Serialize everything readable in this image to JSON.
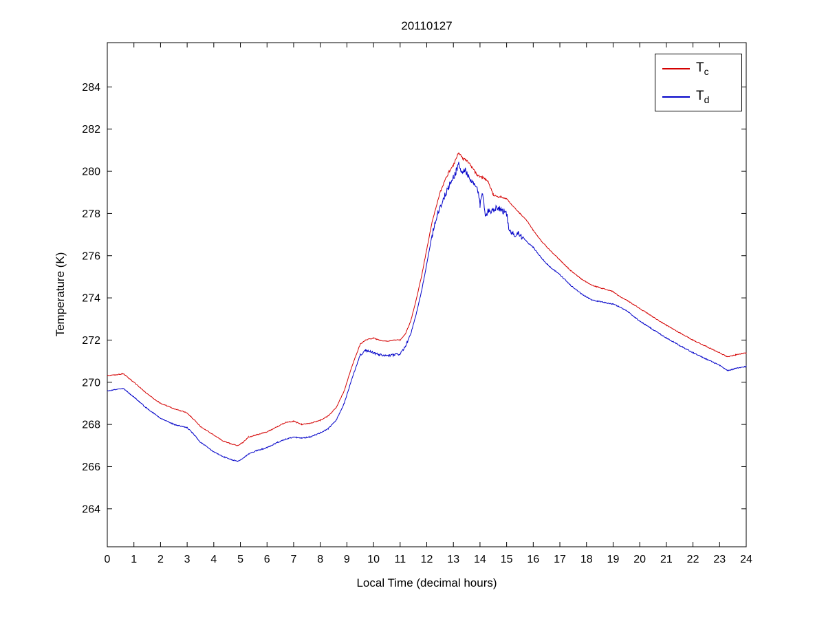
{
  "chart_data": {
    "type": "line",
    "title": "20110127",
    "xlabel": "Local Time (decimal hours)",
    "ylabel": "Temperature (K)",
    "xlim": [
      0,
      24
    ],
    "ylim": [
      262.2,
      286.1
    ],
    "xticks": [
      0,
      1,
      2,
      3,
      4,
      5,
      6,
      7,
      8,
      9,
      10,
      11,
      12,
      13,
      14,
      15,
      16,
      17,
      18,
      19,
      20,
      21,
      22,
      23,
      24
    ],
    "yticks": [
      264,
      266,
      268,
      270,
      272,
      274,
      276,
      278,
      280,
      282,
      284
    ],
    "grid": false,
    "legend_position": "top-right",
    "series": [
      {
        "name": "Tc",
        "label_main": "T",
        "label_sub": "c",
        "color": "#d40000",
        "x": [
          0,
          0.3,
          0.6,
          1,
          1.5,
          2,
          2.5,
          3,
          3.2,
          3.5,
          4,
          4.3,
          4.6,
          4.9,
          5.1,
          5.3,
          5.6,
          6,
          6.4,
          6.7,
          7,
          7.3,
          7.6,
          8,
          8.3,
          8.6,
          8.9,
          9.2,
          9.5,
          9.7,
          10,
          10.2,
          10.5,
          10.8,
          11,
          11.2,
          11.4,
          11.6,
          11.8,
          12,
          12.2,
          12.5,
          12.8,
          13,
          13.2,
          13.35,
          13.5,
          13.7,
          13.9,
          14.1,
          14.3,
          14.5,
          14.7,
          15,
          15.2,
          15.5,
          15.8,
          16,
          16.3,
          16.6,
          17,
          17.4,
          17.8,
          18.2,
          18.6,
          19,
          19.2,
          19.5,
          20,
          20.5,
          21,
          21.5,
          22,
          22.5,
          23,
          23.3,
          23.6,
          24
        ],
        "y": [
          270.3,
          270.35,
          270.4,
          270.0,
          269.45,
          269.0,
          268.75,
          268.55,
          268.3,
          267.9,
          267.5,
          267.25,
          267.1,
          267.0,
          267.15,
          267.4,
          267.5,
          267.65,
          267.9,
          268.1,
          268.15,
          268.0,
          268.05,
          268.2,
          268.4,
          268.8,
          269.6,
          270.8,
          271.8,
          272.0,
          272.1,
          272.0,
          271.95,
          272.0,
          272.0,
          272.3,
          272.9,
          273.9,
          275.0,
          276.3,
          277.6,
          279.0,
          279.9,
          280.3,
          280.9,
          280.6,
          280.5,
          280.2,
          279.8,
          279.7,
          279.5,
          278.9,
          278.8,
          278.7,
          278.4,
          278.0,
          277.6,
          277.2,
          276.7,
          276.3,
          275.8,
          275.3,
          274.9,
          274.6,
          274.45,
          274.3,
          274.1,
          273.9,
          273.5,
          273.1,
          272.7,
          272.35,
          272.0,
          271.7,
          271.4,
          271.2,
          271.3,
          271.4
        ],
        "noise": [
          {
            "from": 0,
            "to": 24,
            "amp": 0.02
          },
          {
            "from": 12.5,
            "to": 14.8,
            "amp": 0.06
          }
        ]
      },
      {
        "name": "Td",
        "label_main": "T",
        "label_sub": "d",
        "color": "#0000c8",
        "x": [
          0,
          0.3,
          0.6,
          1,
          1.5,
          2,
          2.5,
          3,
          3.2,
          3.5,
          4,
          4.3,
          4.6,
          4.9,
          5.1,
          5.3,
          5.6,
          6,
          6.4,
          6.7,
          7,
          7.3,
          7.6,
          8,
          8.3,
          8.6,
          8.9,
          9.2,
          9.5,
          9.7,
          10,
          10.2,
          10.5,
          10.8,
          11,
          11.2,
          11.4,
          11.6,
          11.8,
          12,
          12.2,
          12.4,
          12.6,
          12.8,
          13,
          13.1,
          13.2,
          13.3,
          13.45,
          13.6,
          13.75,
          13.9,
          14,
          14.1,
          14.2,
          14.35,
          14.5,
          14.65,
          14.8,
          15,
          15.1,
          15.25,
          15.4,
          15.6,
          15.8,
          16,
          16.3,
          16.6,
          17,
          17.4,
          17.8,
          18.2,
          18.6,
          19,
          19.2,
          19.5,
          20,
          20.5,
          21,
          21.5,
          22,
          22.5,
          23,
          23.3,
          23.6,
          24
        ],
        "y": [
          269.6,
          269.65,
          269.7,
          269.3,
          268.75,
          268.3,
          268.0,
          267.85,
          267.6,
          267.15,
          266.7,
          266.5,
          266.35,
          266.25,
          266.4,
          266.6,
          266.75,
          266.9,
          267.15,
          267.3,
          267.4,
          267.35,
          267.4,
          267.6,
          267.8,
          268.2,
          269.0,
          270.2,
          271.3,
          271.5,
          271.4,
          271.3,
          271.25,
          271.3,
          271.35,
          271.7,
          272.3,
          273.2,
          274.3,
          275.6,
          277.0,
          278.0,
          278.6,
          279.2,
          279.7,
          280.0,
          280.4,
          279.9,
          280.1,
          279.6,
          279.4,
          279.2,
          278.4,
          279.0,
          278.0,
          278.1,
          278.2,
          278.3,
          278.2,
          278.0,
          277.1,
          277.0,
          277.1,
          276.9,
          276.6,
          276.4,
          275.9,
          275.5,
          275.1,
          274.6,
          274.2,
          273.9,
          273.8,
          273.7,
          273.6,
          273.4,
          272.9,
          272.5,
          272.1,
          271.75,
          271.4,
          271.1,
          270.8,
          270.55,
          270.65,
          270.75
        ],
        "noise": [
          {
            "from": 0,
            "to": 24,
            "amp": 0.025
          },
          {
            "from": 9.5,
            "to": 11.3,
            "amp": 0.06
          },
          {
            "from": 12.2,
            "to": 15.6,
            "amp": 0.16
          }
        ]
      }
    ]
  }
}
